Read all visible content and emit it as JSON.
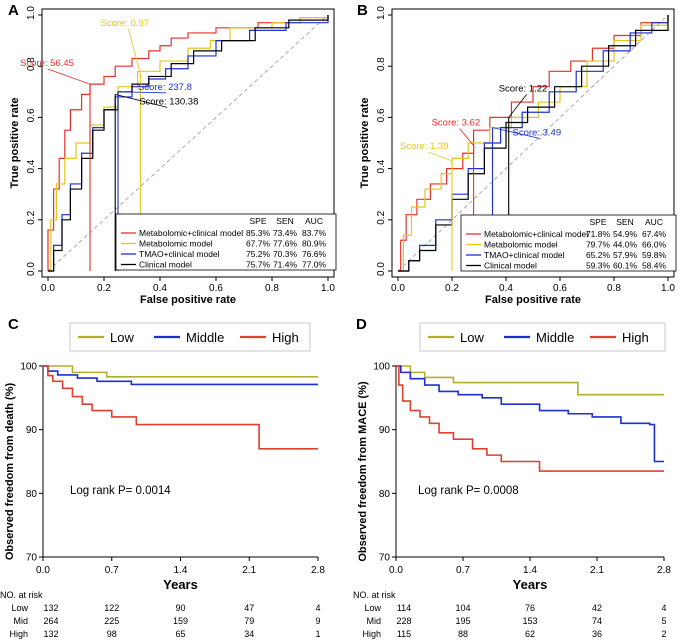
{
  "colors": {
    "red": "#e8312b",
    "yellow": "#e3c81a",
    "blue": "#1c2fd4",
    "black": "#000000",
    "olive": "#b5ad2c",
    "kmred": "#e0402f",
    "diag": "#aaaaaa"
  },
  "chart_data": [
    {
      "panel": "A",
      "type": "line",
      "xlabel": "False positive rate",
      "ylabel": "True positive rate",
      "xlim": [
        0,
        1
      ],
      "ylim": [
        0,
        1
      ],
      "xticks": [
        "0.0",
        "0.2",
        "0.4",
        "0.6",
        "0.8",
        "1.0"
      ],
      "yticks": [
        "0.0",
        "0.2",
        "0.4",
        "0.6",
        "0.8",
        "1.0"
      ],
      "table_header": [
        "SPE",
        "SEN",
        "AUC"
      ],
      "series": [
        {
          "name": "Metabolomic+clinical model",
          "color": "red",
          "spe": "85.3%",
          "sen": "73.4%",
          "auc": "83.7%",
          "points": [
            [
              0,
              0
            ],
            [
              0,
              0.16
            ],
            [
              0.02,
              0.32
            ],
            [
              0.04,
              0.44
            ],
            [
              0.06,
              0.55
            ],
            [
              0.08,
              0.63
            ],
            [
              0.12,
              0.69
            ],
            [
              0.15,
              0.73
            ],
            [
              0.2,
              0.76
            ],
            [
              0.24,
              0.8
            ],
            [
              0.3,
              0.83
            ],
            [
              0.36,
              0.86
            ],
            [
              0.4,
              0.88
            ],
            [
              0.44,
              0.91
            ],
            [
              0.5,
              0.93
            ],
            [
              0.6,
              0.95
            ],
            [
              0.75,
              0.97
            ],
            [
              0.9,
              0.99
            ],
            [
              1,
              1
            ]
          ]
        },
        {
          "name": "Metabolomic model",
          "color": "yellow",
          "spe": "67.7%",
          "sen": "77.6%",
          "auc": "80.9%",
          "points": [
            [
              0,
              0
            ],
            [
              0.01,
              0.2
            ],
            [
              0.03,
              0.34
            ],
            [
              0.06,
              0.44
            ],
            [
              0.1,
              0.5
            ],
            [
              0.15,
              0.57
            ],
            [
              0.2,
              0.64
            ],
            [
              0.25,
              0.72
            ],
            [
              0.32,
              0.78
            ],
            [
              0.4,
              0.82
            ],
            [
              0.5,
              0.87
            ],
            [
              0.58,
              0.9
            ],
            [
              0.65,
              0.95
            ],
            [
              0.8,
              0.97
            ],
            [
              0.9,
              0.99
            ],
            [
              1,
              1
            ]
          ]
        },
        {
          "name": "TMAO+clinical model",
          "color": "blue",
          "spe": "75.2%",
          "sen": "70.3%",
          "auc": "76.6%",
          "points": [
            [
              0,
              0
            ],
            [
              0.02,
              0.1
            ],
            [
              0.05,
              0.22
            ],
            [
              0.08,
              0.34
            ],
            [
              0.12,
              0.46
            ],
            [
              0.16,
              0.56
            ],
            [
              0.2,
              0.63
            ],
            [
              0.24,
              0.68
            ],
            [
              0.3,
              0.72
            ],
            [
              0.36,
              0.75
            ],
            [
              0.42,
              0.79
            ],
            [
              0.5,
              0.84
            ],
            [
              0.6,
              0.9
            ],
            [
              0.72,
              0.94
            ],
            [
              0.85,
              0.97
            ],
            [
              1,
              1
            ]
          ]
        },
        {
          "name": "Clinical model",
          "color": "black",
          "spe": "75.7%",
          "sen": "71.4%",
          "auc": "77.0%",
          "points": [
            [
              0,
              0
            ],
            [
              0.02,
              0.08
            ],
            [
              0.05,
              0.2
            ],
            [
              0.08,
              0.32
            ],
            [
              0.12,
              0.44
            ],
            [
              0.16,
              0.55
            ],
            [
              0.2,
              0.63
            ],
            [
              0.25,
              0.7
            ],
            [
              0.3,
              0.73
            ],
            [
              0.36,
              0.76
            ],
            [
              0.44,
              0.81
            ],
            [
              0.52,
              0.86
            ],
            [
              0.62,
              0.9
            ],
            [
              0.74,
              0.95
            ],
            [
              0.86,
              0.98
            ],
            [
              1,
              1
            ]
          ]
        }
      ],
      "scores": [
        {
          "label": "Score:",
          "value": "56.45",
          "color": "red",
          "x": 0.15,
          "y": 0.73
        },
        {
          "label": "Score:",
          "value": "0.97",
          "color": "yellow",
          "x": 0.33,
          "y": 0.77
        },
        {
          "label": "Score:",
          "value": "237.8",
          "color": "blue",
          "x": 0.25,
          "y": 0.7
        },
        {
          "label": "Score:",
          "value": "130.38",
          "color": "black",
          "x": 0.24,
          "y": 0.69
        }
      ]
    },
    {
      "panel": "B",
      "type": "line",
      "xlabel": "False positive rate",
      "ylabel": "True positive rate",
      "xlim": [
        0,
        1
      ],
      "ylim": [
        0,
        1
      ],
      "xticks": [
        "0.0",
        "0.2",
        "0.4",
        "0.6",
        "0.8",
        "1.0"
      ],
      "yticks": [
        "0.0",
        "0.2",
        "0.4",
        "0.6",
        "0.8",
        "1.0"
      ],
      "table_header": [
        "SPE",
        "SEN",
        "AUC"
      ],
      "series": [
        {
          "name": "Metabolomic+clinical model",
          "color": "red",
          "spe": "71.8%",
          "sen": "54.9%",
          "auc": "67.4%",
          "points": [
            [
              0,
              0
            ],
            [
              0.01,
              0.12
            ],
            [
              0.03,
              0.22
            ],
            [
              0.07,
              0.28
            ],
            [
              0.12,
              0.34
            ],
            [
              0.18,
              0.4
            ],
            [
              0.24,
              0.46
            ],
            [
              0.28,
              0.55
            ],
            [
              0.34,
              0.6
            ],
            [
              0.42,
              0.66
            ],
            [
              0.5,
              0.72
            ],
            [
              0.56,
              0.78
            ],
            [
              0.64,
              0.82
            ],
            [
              0.72,
              0.87
            ],
            [
              0.8,
              0.92
            ],
            [
              0.9,
              0.97
            ],
            [
              1,
              1
            ]
          ]
        },
        {
          "name": "Metabolomic model",
          "color": "yellow",
          "spe": "79.7%",
          "sen": "44.0%",
          "auc": "66.0%",
          "points": [
            [
              0,
              0
            ],
            [
              0.02,
              0.14
            ],
            [
              0.05,
              0.25
            ],
            [
              0.1,
              0.32
            ],
            [
              0.16,
              0.38
            ],
            [
              0.2,
              0.44
            ],
            [
              0.26,
              0.5
            ],
            [
              0.34,
              0.56
            ],
            [
              0.42,
              0.6
            ],
            [
              0.52,
              0.66
            ],
            [
              0.6,
              0.72
            ],
            [
              0.7,
              0.82
            ],
            [
              0.8,
              0.9
            ],
            [
              0.9,
              0.96
            ],
            [
              1,
              1
            ]
          ]
        },
        {
          "name": "TMAO+clinical model",
          "color": "blue",
          "spe": "65.2%",
          "sen": "57.9%",
          "auc": "59.8%",
          "points": [
            [
              0,
              0
            ],
            [
              0.04,
              0.04
            ],
            [
              0.08,
              0.1
            ],
            [
              0.14,
              0.2
            ],
            [
              0.2,
              0.3
            ],
            [
              0.26,
              0.4
            ],
            [
              0.32,
              0.5
            ],
            [
              0.38,
              0.56
            ],
            [
              0.46,
              0.62
            ],
            [
              0.56,
              0.7
            ],
            [
              0.66,
              0.78
            ],
            [
              0.76,
              0.86
            ],
            [
              0.86,
              0.93
            ],
            [
              0.94,
              0.97
            ],
            [
              1,
              1
            ]
          ]
        },
        {
          "name": "Clinical model",
          "color": "black",
          "spe": "59.3%",
          "sen": "60.1%",
          "auc": "58.4%",
          "points": [
            [
              0,
              0
            ],
            [
              0.04,
              0.04
            ],
            [
              0.08,
              0.08
            ],
            [
              0.14,
              0.18
            ],
            [
              0.2,
              0.28
            ],
            [
              0.26,
              0.38
            ],
            [
              0.32,
              0.48
            ],
            [
              0.4,
              0.58
            ],
            [
              0.48,
              0.64
            ],
            [
              0.58,
              0.72
            ],
            [
              0.68,
              0.8
            ],
            [
              0.78,
              0.88
            ],
            [
              0.88,
              0.94
            ],
            [
              1,
              1
            ]
          ]
        }
      ],
      "scores": [
        {
          "label": "Score:",
          "value": "3.62",
          "color": "red",
          "x": 0.28,
          "y": 0.49
        },
        {
          "label": "Score:",
          "value": "1.39",
          "color": "yellow",
          "x": 0.2,
          "y": 0.43
        },
        {
          "label": "Score:",
          "value": "3.49",
          "color": "blue",
          "x": 0.35,
          "y": 0.56
        },
        {
          "label": "Score:",
          "value": "1.22",
          "color": "black",
          "x": 0.41,
          "y": 0.6
        }
      ]
    },
    {
      "panel": "C",
      "type": "line",
      "xlabel": "Years",
      "ylabel": "Observed freedom from death (%)",
      "xlim": [
        0,
        2.8
      ],
      "ylim": [
        70,
        100
      ],
      "xticks": [
        "0.0",
        "0.7",
        "1.4",
        "2.1",
        "2.8"
      ],
      "yticks": [
        "70",
        "80",
        "90",
        "100"
      ],
      "log_rank": "Log rank P= 0.0014",
      "series": [
        {
          "name": "Low",
          "color": "olive",
          "points": [
            [
              0,
              100
            ],
            [
              0.25,
              100
            ],
            [
              0.3,
              99
            ],
            [
              0.6,
              99
            ],
            [
              0.65,
              98.3
            ],
            [
              2.8,
              98.3
            ]
          ]
        },
        {
          "name": "Middle",
          "color": "blue",
          "points": [
            [
              0,
              100
            ],
            [
              0.05,
              99.2
            ],
            [
              0.15,
              98.6
            ],
            [
              0.35,
              98.1
            ],
            [
              0.55,
              97.6
            ],
            [
              0.9,
              97.1
            ],
            [
              2.8,
              97.1
            ]
          ]
        },
        {
          "name": "High",
          "color": "kmred",
          "points": [
            [
              0,
              100
            ],
            [
              0.05,
              98.5
            ],
            [
              0.1,
              97.6
            ],
            [
              0.2,
              96.5
            ],
            [
              0.3,
              95.2
            ],
            [
              0.4,
              94
            ],
            [
              0.5,
              93
            ],
            [
              0.7,
              92
            ],
            [
              0.95,
              90.8
            ],
            [
              2.2,
              90.8
            ],
            [
              2.2,
              87
            ],
            [
              2.8,
              87
            ]
          ]
        }
      ],
      "risk_table": {
        "title": "NO. at risk",
        "rows": [
          {
            "label": "Low",
            "values": [
              "132",
              "122",
              "90",
              "47",
              "4"
            ]
          },
          {
            "label": "Mid",
            "values": [
              "264",
              "225",
              "159",
              "79",
              "9"
            ]
          },
          {
            "label": "High",
            "values": [
              "132",
              "98",
              "65",
              "34",
              "1"
            ]
          }
        ]
      }
    },
    {
      "panel": "D",
      "type": "line",
      "xlabel": "Years",
      "ylabel": "Observed freedom from MACE (%)",
      "xlim": [
        0,
        2.8
      ],
      "ylim": [
        70,
        100
      ],
      "xticks": [
        "0.0",
        "0.7",
        "1.4",
        "2.1",
        "2.8"
      ],
      "yticks": [
        "70",
        "80",
        "90",
        "100"
      ],
      "log_rank": "Log rank P= 0.0008",
      "series": [
        {
          "name": "Low",
          "color": "olive",
          "points": [
            [
              0,
              100
            ],
            [
              0.15,
              99
            ],
            [
              0.3,
              98.2
            ],
            [
              0.6,
              97.4
            ],
            [
              1.85,
              97.4
            ],
            [
              1.9,
              95.5
            ],
            [
              2.8,
              95.5
            ]
          ]
        },
        {
          "name": "Middle",
          "color": "blue",
          "points": [
            [
              0,
              100
            ],
            [
              0.05,
              99
            ],
            [
              0.15,
              98
            ],
            [
              0.3,
              97
            ],
            [
              0.45,
              96
            ],
            [
              0.65,
              95.5
            ],
            [
              0.9,
              95
            ],
            [
              1.1,
              94
            ],
            [
              1.5,
              93
            ],
            [
              1.8,
              92.5
            ],
            [
              2.05,
              92
            ],
            [
              2.35,
              91
            ],
            [
              2.65,
              90.8
            ],
            [
              2.7,
              85
            ],
            [
              2.8,
              85
            ]
          ]
        },
        {
          "name": "High",
          "color": "kmred",
          "points": [
            [
              0,
              100
            ],
            [
              0.03,
              97
            ],
            [
              0.07,
              94.5
            ],
            [
              0.15,
              93
            ],
            [
              0.25,
              92
            ],
            [
              0.35,
              91
            ],
            [
              0.45,
              89.5
            ],
            [
              0.6,
              88.5
            ],
            [
              0.8,
              87
            ],
            [
              0.95,
              86
            ],
            [
              1.1,
              85
            ],
            [
              1.5,
              84.5
            ],
            [
              1.5,
              83.5
            ],
            [
              2.8,
              83.5
            ]
          ]
        }
      ],
      "risk_table": {
        "title": "NO. at risk",
        "rows": [
          {
            "label": "Low",
            "values": [
              "114",
              "104",
              "76",
              "42",
              "4"
            ]
          },
          {
            "label": "Mid",
            "values": [
              "228",
              "195",
              "153",
              "74",
              "5"
            ]
          },
          {
            "label": "High",
            "values": [
              "115",
              "88",
              "62",
              "36",
              "2"
            ]
          }
        ]
      }
    }
  ]
}
